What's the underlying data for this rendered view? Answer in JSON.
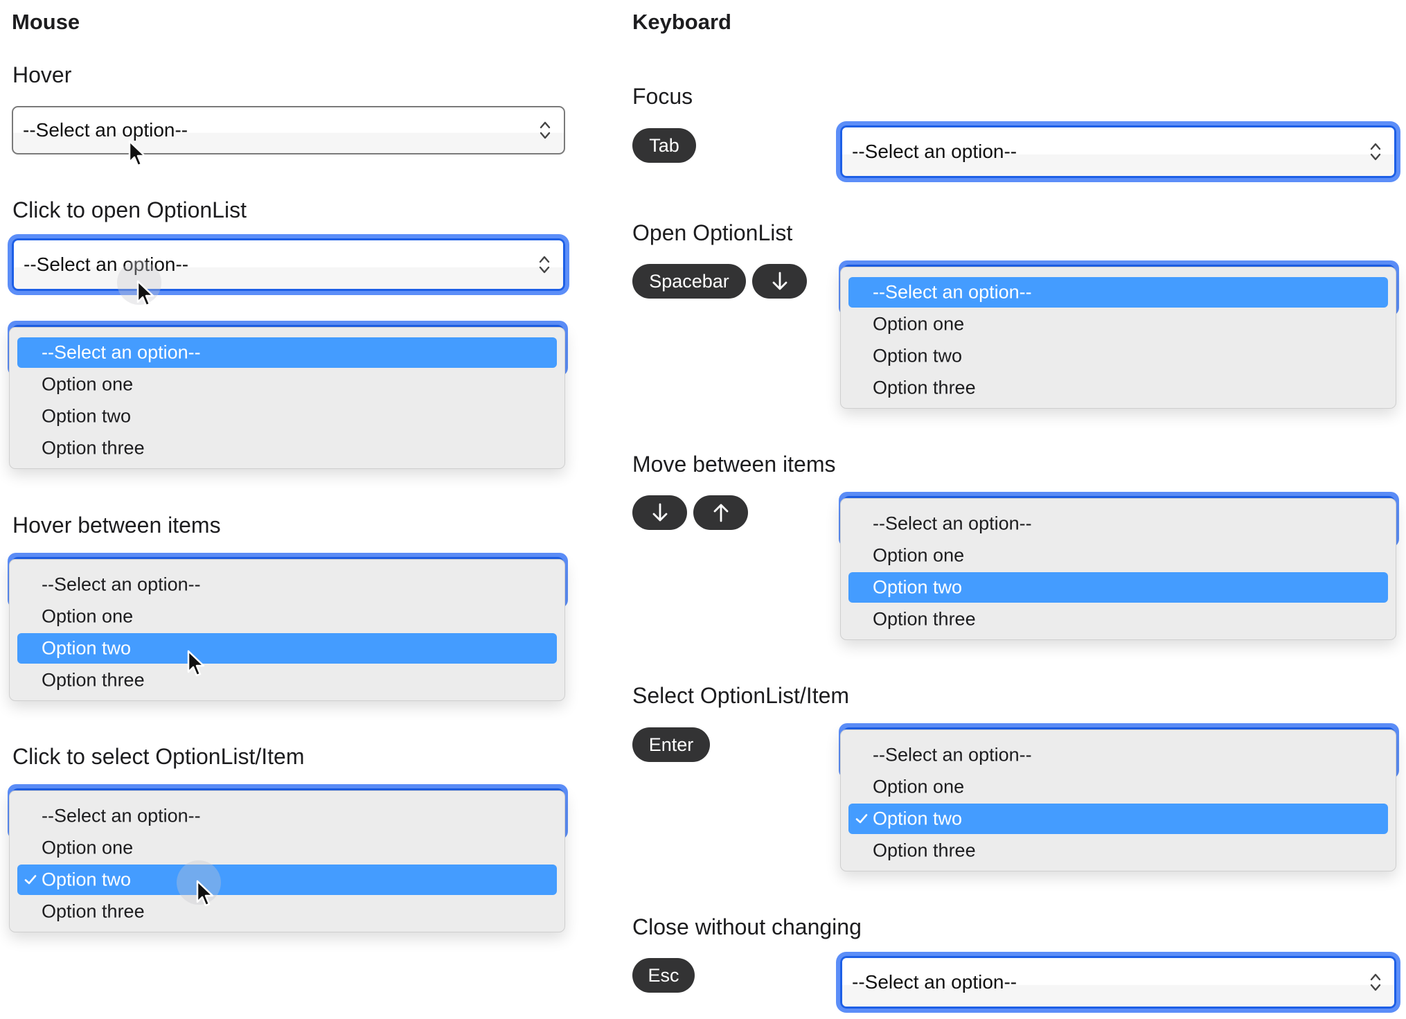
{
  "columns": {
    "mouse": "Mouse",
    "keyboard": "Keyboard"
  },
  "placeholder": "--Select an option--",
  "options": [
    "--Select an option--",
    "Option one",
    "Option two",
    "Option three"
  ],
  "colors": {
    "highlight": "#449cff",
    "focus_ring": "#5c8ef8",
    "focus_border": "#1d5fe6",
    "key_bg": "#333334",
    "list_bg": "#ececec"
  },
  "mouse_sections": [
    {
      "label": "Hover",
      "state": "closed-hover",
      "cursor": true
    },
    {
      "label": "Click to open OptionList",
      "state": "closed-focus",
      "cursor": true,
      "click_halo": true
    },
    {
      "label": "",
      "state": "open",
      "highlighted": 0
    },
    {
      "label": "Hover between items",
      "state": "open",
      "highlighted": 2,
      "cursor": true
    },
    {
      "label": "Click to select OptionList/Item",
      "state": "open",
      "highlighted": 2,
      "checked": 2,
      "cursor": true,
      "click_halo": true
    }
  ],
  "keyboard_sections": [
    {
      "label": "Focus",
      "keys": [
        {
          "label": "Tab"
        }
      ],
      "state": "closed-focus"
    },
    {
      "label": "Open OptionList",
      "keys": [
        {
          "label": "Spacebar"
        },
        {
          "label": "",
          "icon": "arrow-down-icon"
        }
      ],
      "state": "open",
      "highlighted": 0
    },
    {
      "label": "Move between items",
      "keys": [
        {
          "label": "",
          "icon": "arrow-down-icon"
        },
        {
          "label": "",
          "icon": "arrow-up-icon"
        }
      ],
      "state": "open",
      "highlighted": 2
    },
    {
      "label": "Select OptionList/Item",
      "keys": [
        {
          "label": "Enter"
        }
      ],
      "state": "open",
      "highlighted": 2,
      "checked": 2
    },
    {
      "label": "Close without changing",
      "keys": [
        {
          "label": "Esc"
        }
      ],
      "state": "closed-focus"
    }
  ]
}
